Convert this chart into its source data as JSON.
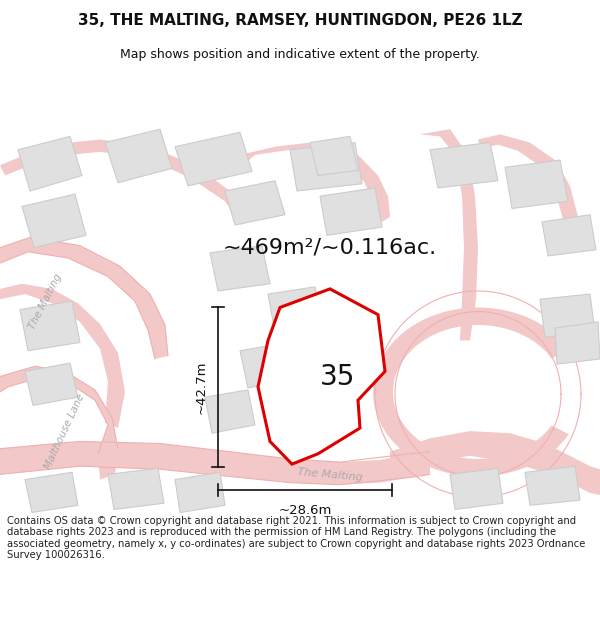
{
  "title_line1": "35, THE MALTING, RAMSEY, HUNTINGDON, PE26 1LZ",
  "title_line2": "Map shows position and indicative extent of the property.",
  "footer": "Contains OS data © Crown copyright and database right 2021. This information is subject to Crown copyright and database rights 2023 and is reproduced with the permission of HM Land Registry. The polygons (including the associated geometry, namely x, y co-ordinates) are subject to Crown copyright and database rights 2023 Ordnance Survey 100026316.",
  "area_label": "~469m²/~0.116ac.",
  "number_label": "35",
  "dim_vertical": "~42.7m",
  "dim_horizontal": "~28.6m",
  "road_label": "The Malting",
  "road_label2": "The Malting",
  "road_label3": "Malthouse Lane",
  "bg_color": "#ffffff",
  "map_bg": "#f7f7f7",
  "road_color": "#f2c8c8",
  "road_line_color": "#f0b0b0",
  "building_color": "#e0e0e0",
  "building_edge": "#cccccc",
  "plot_color": "#ffffff",
  "plot_edge": "#dd0000",
  "plot_lw": 2.2,
  "dim_color": "#111111",
  "road_text_color": "#aaaaaa",
  "title_fontsize": 11,
  "subtitle_fontsize": 9,
  "footer_fontsize": 7.2,
  "area_fontsize": 16,
  "number_fontsize": 20,
  "dim_fontsize": 9.5
}
